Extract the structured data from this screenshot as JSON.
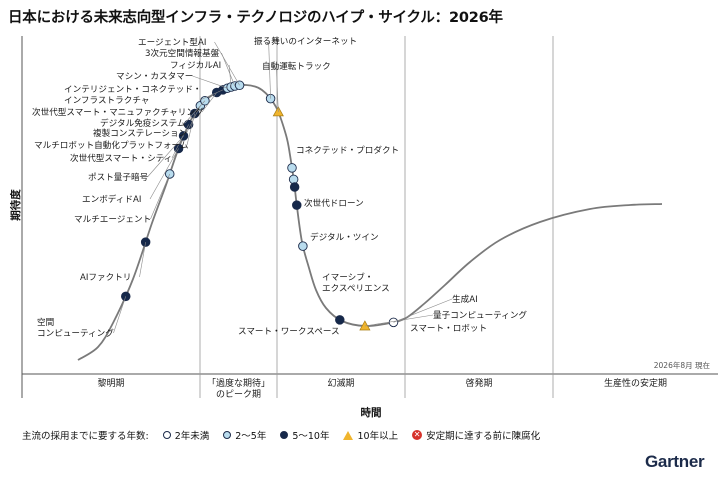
{
  "chart_data": {
    "type": "hype-cycle",
    "title": "日本における未来志向型インフラ・テクノロジのハイプ・サイクル：2026年",
    "xlabel": "時間",
    "ylabel": "期待度",
    "note": "2026年8月 現在",
    "phases": [
      "黎明期",
      "「過度な期待」\nのピーク期",
      "幻滅期",
      "啓発期",
      "生産性の安定期"
    ],
    "legend": {
      "prefix": "主流の採用までに要する年数:",
      "items": [
        {
          "symbol": "white-circle",
          "label": "2年未満",
          "color": "#ffffff"
        },
        {
          "symbol": "light-circle",
          "label": "2〜5年",
          "color": "#b9dcee"
        },
        {
          "symbol": "dark-circle",
          "label": "5〜10年",
          "color": "#15284a"
        },
        {
          "symbol": "yellow-triangle",
          "label": "10年以上",
          "color": "#f0b52e"
        },
        {
          "symbol": "red-x",
          "label": "安定期に達する前に陳腐化",
          "color": "#d6322b"
        }
      ]
    },
    "technologies": [
      {
        "name": "空間\nコンピューティング",
        "t": 0.085,
        "marker": "dark"
      },
      {
        "name": "AIファクトリ",
        "t": 0.145,
        "marker": "dark"
      },
      {
        "name": "マルチエージェント",
        "t": 0.22,
        "marker": "light"
      },
      {
        "name": "エンボディドAI",
        "t": 0.248,
        "marker": "dark"
      },
      {
        "name": "ポスト量子暗号",
        "t": 0.262,
        "marker": "dark"
      },
      {
        "name": "次世代型スマート・シティ",
        "t": 0.275,
        "marker": "dark"
      },
      {
        "name": "マルチロボット自動化プラットフォーム",
        "t": 0.288,
        "marker": "dark"
      },
      {
        "name": "複製コンステレーション",
        "t": 0.298,
        "marker": "light"
      },
      {
        "name": "デジタル免疫システム",
        "t": 0.305,
        "marker": "light"
      },
      {
        "name": "次世代型スマート・マニュファクチャリング",
        "t": 0.32,
        "marker": "dark"
      },
      {
        "name": "インテリジェント・コネクテッド・\nインフラストラクチャ",
        "t": 0.327,
        "marker": "dark"
      },
      {
        "name": "マシン・カスタマー",
        "t": 0.332,
        "marker": "light"
      },
      {
        "name": "フィジカルAI",
        "t": 0.336,
        "marker": "light"
      },
      {
        "name": "3次元空間情報基盤",
        "t": 0.34,
        "marker": "light"
      },
      {
        "name": "エージェント型AI",
        "t": 0.345,
        "marker": "light"
      },
      {
        "name": "振る舞いのインターネット",
        "t": 0.382,
        "marker": "light"
      },
      {
        "name": "自動運転トラック",
        "t": 0.398,
        "marker": "triangle"
      },
      {
        "name": "コネクテッド・プロダクト",
        "t": 0.458,
        "marker": "light"
      },
      {
        "name": "次世代ドローン",
        "t": 0.47,
        "marker": "light"
      },
      {
        "name": "デジタル・ツイン",
        "t": 0.478,
        "marker": "dark"
      },
      {
        "name": "イマーシブ・\nエクスペリエンス",
        "t": 0.497,
        "marker": "dark"
      },
      {
        "name": "スマート・ワークスペース",
        "t": 0.54,
        "marker": "light"
      },
      {
        "name": "スマート・ロボット",
        "t": 0.628,
        "marker": "dark"
      },
      {
        "name": "量子コンピューティング",
        "t": 0.655,
        "marker": "triangle"
      },
      {
        "name": "生成AI",
        "t": 0.685,
        "marker": "white"
      }
    ]
  },
  "brand": "Gartner"
}
